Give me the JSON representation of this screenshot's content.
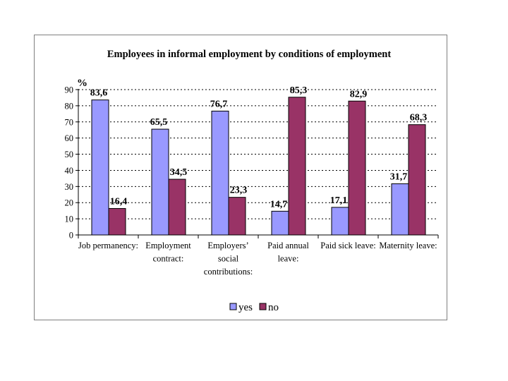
{
  "chart_data": {
    "type": "bar",
    "title": "Employees in informal employment by conditions of employment",
    "ylabel": "%",
    "xlabel": "",
    "ylim": [
      0,
      90
    ],
    "yticks": [
      0,
      10,
      20,
      30,
      40,
      50,
      60,
      70,
      80,
      90
    ],
    "grid": true,
    "legend_position": "bottom",
    "categories": [
      [
        "Job permanency:"
      ],
      [
        "Employment",
        "contract:"
      ],
      [
        "Employers’",
        "social",
        "contributions:"
      ],
      [
        "Paid annual",
        "leave:"
      ],
      [
        "Paid sick leave:"
      ],
      [
        "Maternity leave:"
      ]
    ],
    "series": [
      {
        "name": "yes",
        "color": "#9999ff",
        "values": [
          83.6,
          65.5,
          76.7,
          14.7,
          17.1,
          31.7
        ],
        "labels": [
          "83,6",
          "65,5",
          "76,7",
          "14,7",
          "17,1",
          "31,7"
        ]
      },
      {
        "name": "no",
        "color": "#993366",
        "values": [
          16.4,
          34.5,
          23.3,
          85.3,
          82.9,
          68.3
        ],
        "labels": [
          "16,4",
          "34,5",
          "23,3",
          "85,3",
          "82,9",
          "68,3"
        ]
      }
    ]
  }
}
